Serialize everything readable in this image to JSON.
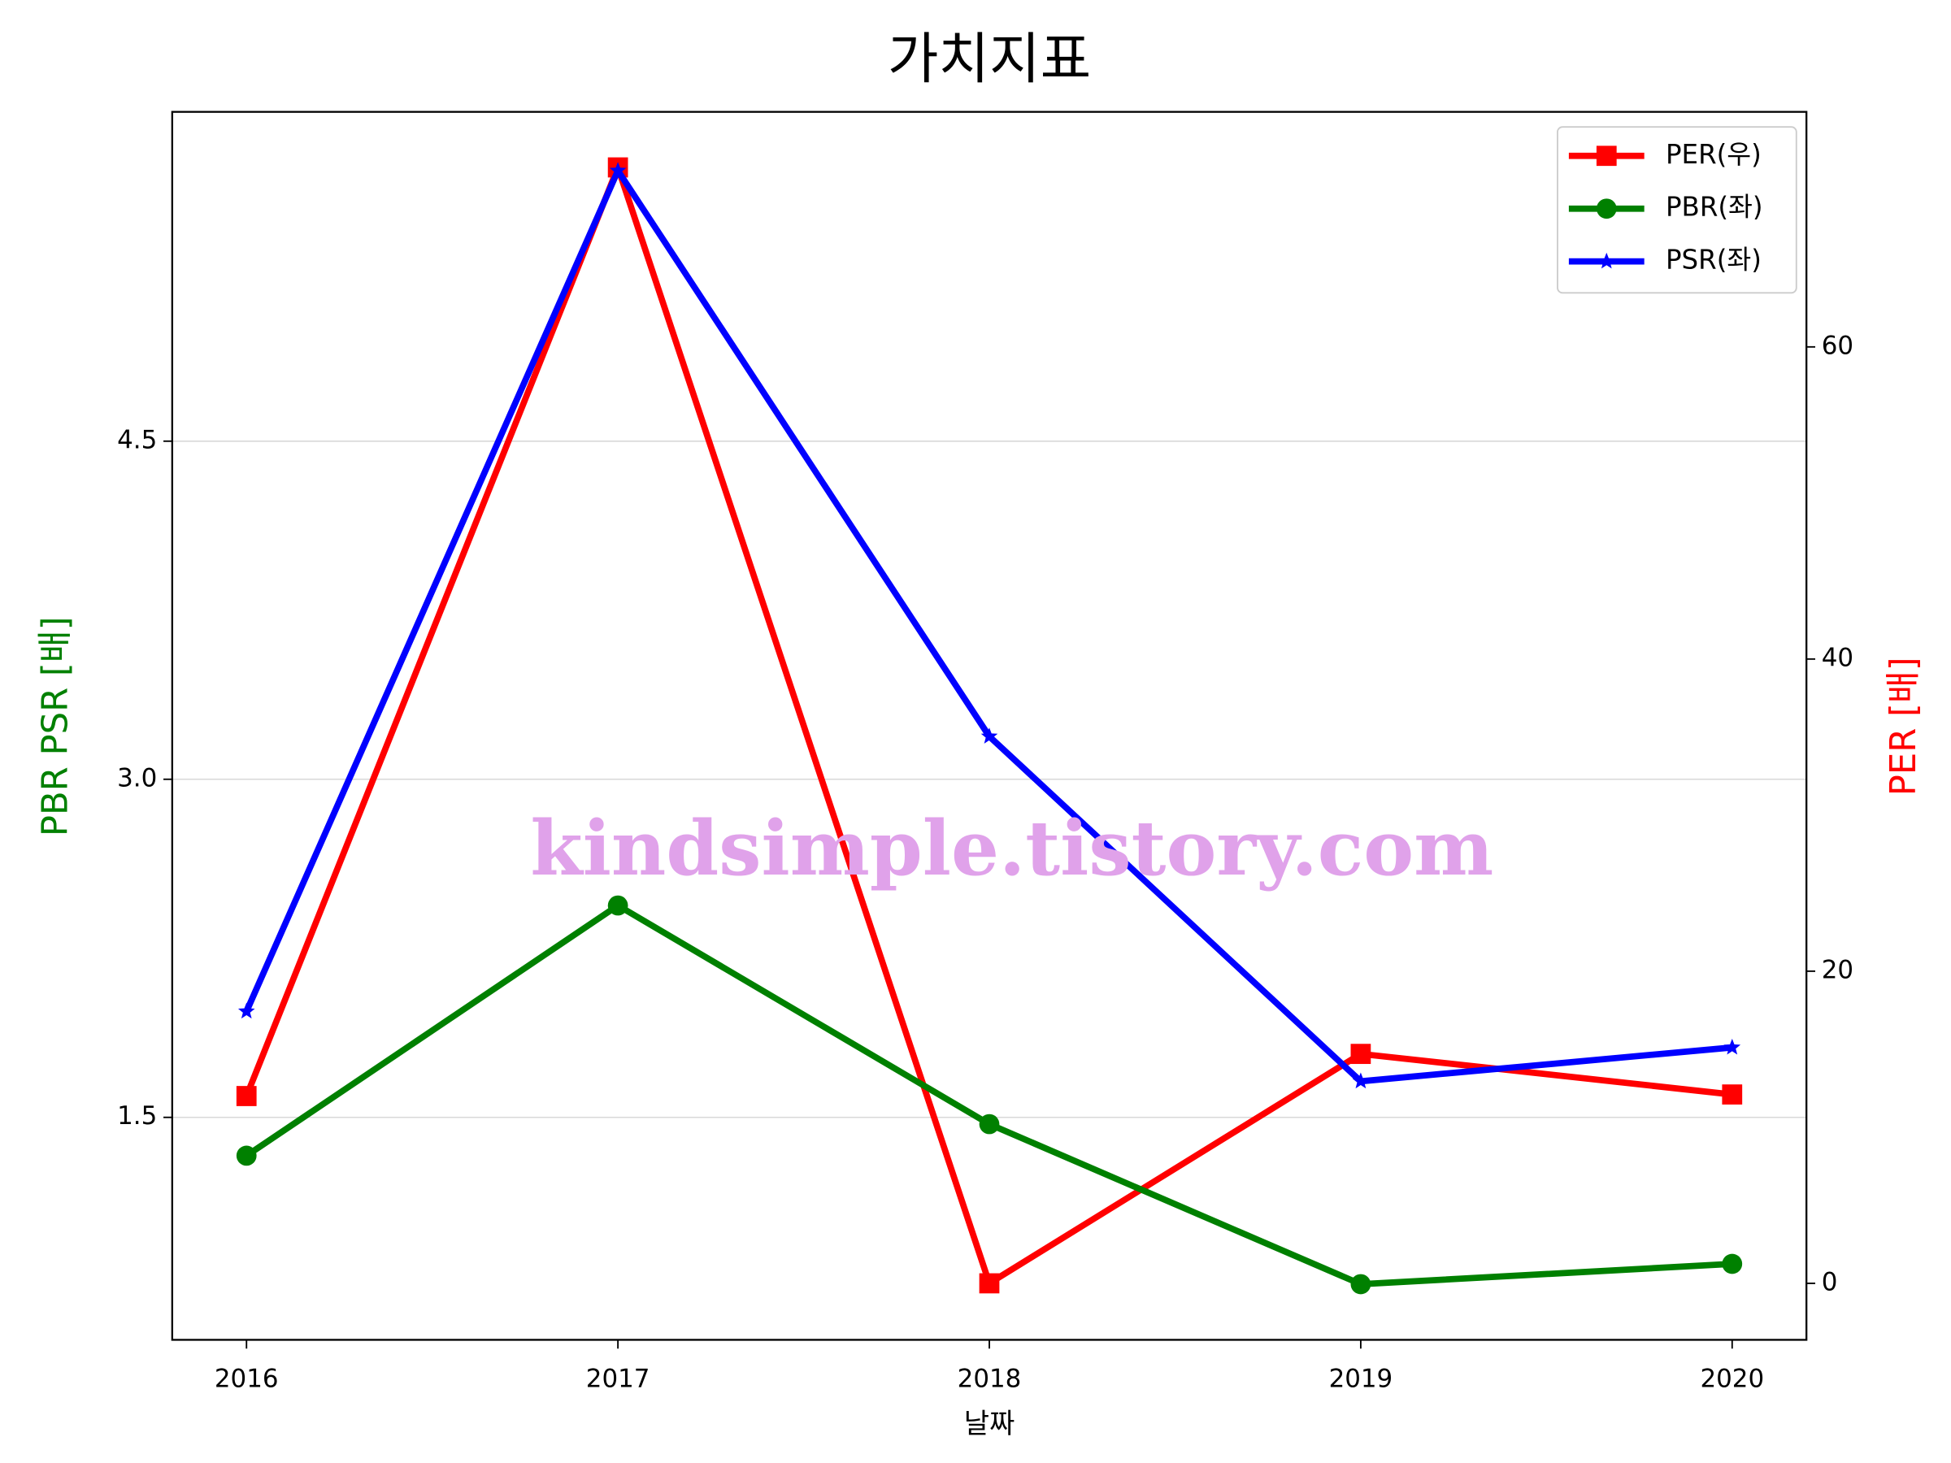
{
  "chart_data": {
    "type": "line",
    "title": "가치지표",
    "xlabel": "날짜",
    "ylabel": "PBR PSR [배]",
    "y2label": "PER [배]",
    "annotation": "kindsimple.tistory.com",
    "x": [
      2016,
      2017,
      2018,
      2019,
      2020
    ],
    "xlim": [
      2015.8,
      2020.2
    ],
    "xticks": [
      2016,
      2017,
      2018,
      2019,
      2020
    ],
    "ylim": [
      0.513,
      5.961
    ],
    "yticks": [
      1.5,
      {
        "value": 3,
        "label": "3.0"
      },
      4.5
    ],
    "y2lim": [
      -3.62,
      75.06
    ],
    "y2ticks": [
      0,
      20,
      40,
      60
    ],
    "grid": true,
    "legend": "upper right",
    "ylabel_color": "#008000",
    "y2label_color": "#ff0000",
    "series": [
      {
        "name": "PER(우)",
        "color": "#ff0000",
        "marker": "square",
        "axis": "y2",
        "values": [
          12.0,
          71.5,
          0,
          14.7,
          12.1
        ]
      },
      {
        "name": "PBR(좌)",
        "color": "#008000",
        "marker": "circle",
        "values": [
          1.33,
          2.44,
          1.47,
          0.76,
          0.85
        ]
      },
      {
        "name": "PSR(좌)",
        "color": "#0000ff",
        "marker": "star",
        "values": [
          1.97,
          5.7,
          3.19,
          1.66,
          1.81
        ]
      }
    ]
  }
}
